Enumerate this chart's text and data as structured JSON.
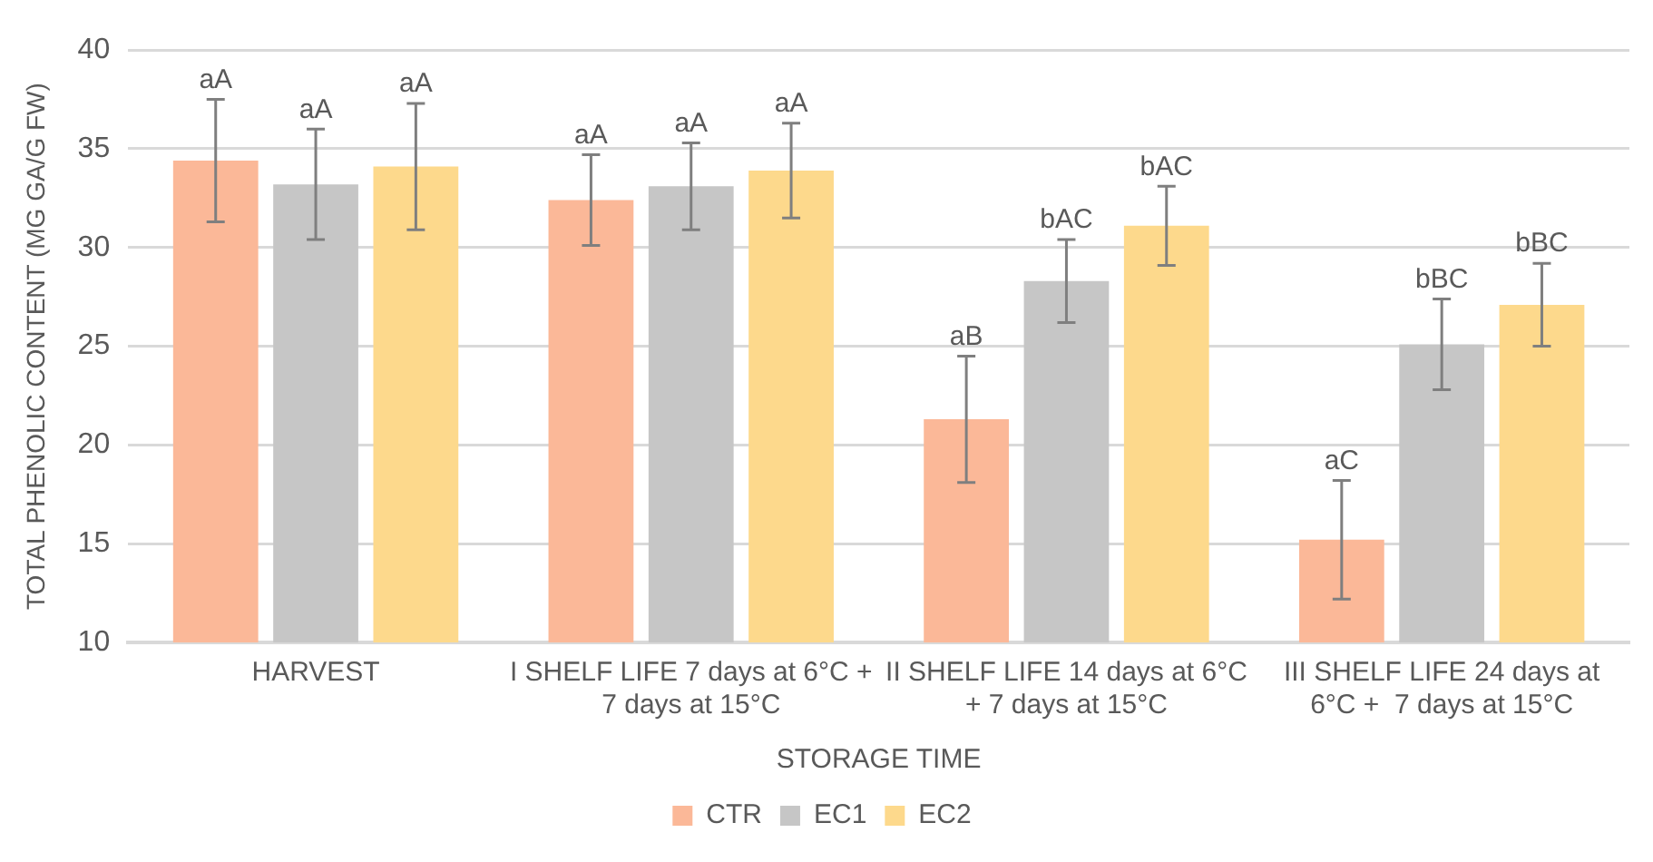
{
  "chart_data": {
    "type": "bar",
    "xlabel": "STORAGE TIME",
    "ylabel": "TOTAL PHENOLIC CONTENT (MG GA/G FW)",
    "categories": [
      "HARVEST",
      "I SHELF LIFE 7 days at 6°C + 7 days at 15°C",
      "II SHELF LIFE 14 days at 6°C + 7 days at 15°C",
      "III SHELF LIFE 24 days at 6°C +  7 days at 15°C"
    ],
    "series": [
      {
        "name": "CTR",
        "color": "#fbb898",
        "values": [
          34.4,
          32.4,
          21.3,
          15.2
        ],
        "errors": [
          3.1,
          2.3,
          3.2,
          3.0
        ],
        "value_labels": [
          "aA",
          "aA",
          "aB",
          "aC"
        ]
      },
      {
        "name": "EC1",
        "color": "#c6c6c6",
        "values": [
          33.2,
          33.1,
          28.3,
          25.1
        ],
        "errors": [
          2.8,
          2.2,
          2.1,
          2.3
        ],
        "value_labels": [
          "aA",
          "aA",
          "bAC",
          "bBC"
        ]
      },
      {
        "name": "EC2",
        "color": "#fdd98c",
        "values": [
          34.1,
          33.9,
          31.1,
          27.1
        ],
        "errors": [
          3.2,
          2.4,
          2.0,
          2.1
        ],
        "value_labels": [
          "aA",
          "aA",
          "bAC",
          "bBC"
        ]
      }
    ],
    "ylim": [
      10,
      40
    ],
    "yticks": [
      10,
      15,
      20,
      25,
      30,
      35,
      40
    ],
    "grid": "y",
    "legend": "bottom"
  }
}
